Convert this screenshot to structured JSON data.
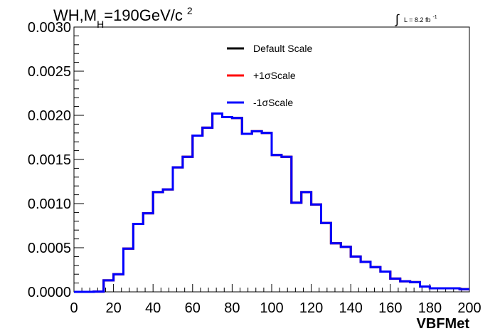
{
  "chart_data": {
    "type": "line",
    "title": {
      "prefix": "WH,M",
      "sub": "H",
      "value": "=190GeV/c",
      "sup": "2"
    },
    "lumi": {
      "integral": "∫",
      "text": "L = 8.2 fb",
      "sup": "-1"
    },
    "xlabel": "VBFMet",
    "ylabel": "",
    "xlim": [
      0,
      200
    ],
    "ylim": [
      0,
      0.003
    ],
    "x_ticks": [
      0,
      20,
      40,
      60,
      80,
      100,
      120,
      140,
      160,
      180,
      200
    ],
    "x_tick_labels": [
      "0",
      "20",
      "40",
      "60",
      "80",
      "100",
      "120",
      "140",
      "160",
      "180",
      "200"
    ],
    "y_ticks": [
      0,
      0.0005,
      0.001,
      0.0015,
      0.002,
      0.0025,
      0.003
    ],
    "y_tick_labels": [
      "0.0000",
      "0.0005",
      "0.0010",
      "0.0015",
      "0.0020",
      "0.0025",
      "0.0030"
    ],
    "bin_edges": [
      0,
      5,
      10,
      15,
      20,
      25,
      30,
      35,
      40,
      45,
      50,
      55,
      60,
      65,
      70,
      75,
      80,
      85,
      90,
      95,
      100,
      105,
      110,
      115,
      120,
      125,
      130,
      135,
      140,
      145,
      150,
      155,
      160,
      165,
      170,
      175,
      180,
      185,
      190,
      195,
      200
    ],
    "legend": {
      "placement": "top-center",
      "entries": [
        {
          "name": "Default Scale",
          "color": "#000000"
        },
        {
          "name": "+1σScale",
          "color": "#ff0000"
        },
        {
          "name": "-1σScale",
          "color": "#0000ff"
        }
      ]
    },
    "series": [
      {
        "name": "Default Scale",
        "color": "#000000",
        "values": [
          0.0,
          0.0,
          3e-06,
          0.00013,
          0.0002,
          0.00049,
          0.00077,
          0.00089,
          0.00113,
          0.00116,
          0.00141,
          0.00153,
          0.00177,
          0.00186,
          0.00202,
          0.00198,
          0.00197,
          0.00179,
          0.00182,
          0.0018,
          0.00155,
          0.00153,
          0.00101,
          0.00113,
          0.00099,
          0.00078,
          0.00055,
          0.00051,
          0.0004,
          0.00034,
          0.00028,
          0.00023,
          0.00015,
          0.00012,
          0.00011,
          6e-05,
          4e-05,
          4e-05,
          4e-05,
          3e-05
        ]
      },
      {
        "name": "+1σScale",
        "color": "#ff0000",
        "values": [
          0.0,
          0.0,
          3e-06,
          0.00013,
          0.0002,
          0.00049,
          0.00077,
          0.00089,
          0.00113,
          0.00116,
          0.00141,
          0.00153,
          0.00177,
          0.00186,
          0.00202,
          0.00198,
          0.00197,
          0.00179,
          0.00182,
          0.0018,
          0.00155,
          0.00153,
          0.00101,
          0.00113,
          0.00099,
          0.00078,
          0.00055,
          0.00051,
          0.0004,
          0.00034,
          0.00028,
          0.00023,
          0.00015,
          0.00012,
          0.00011,
          6e-05,
          4e-05,
          4e-05,
          4e-05,
          3e-05
        ]
      },
      {
        "name": "-1σScale",
        "color": "#0000ff",
        "values": [
          0.0,
          0.0,
          3e-06,
          0.00013,
          0.0002,
          0.00049,
          0.00077,
          0.00089,
          0.00113,
          0.00116,
          0.00141,
          0.00153,
          0.00177,
          0.00186,
          0.00202,
          0.00198,
          0.00197,
          0.00179,
          0.00182,
          0.0018,
          0.00155,
          0.00153,
          0.00101,
          0.00113,
          0.00099,
          0.00078,
          0.00055,
          0.00051,
          0.0004,
          0.00034,
          0.00028,
          0.00023,
          0.00015,
          0.00012,
          0.00011,
          6e-05,
          4e-05,
          4e-05,
          4e-05,
          3e-05
        ]
      }
    ],
    "grid": false
  }
}
